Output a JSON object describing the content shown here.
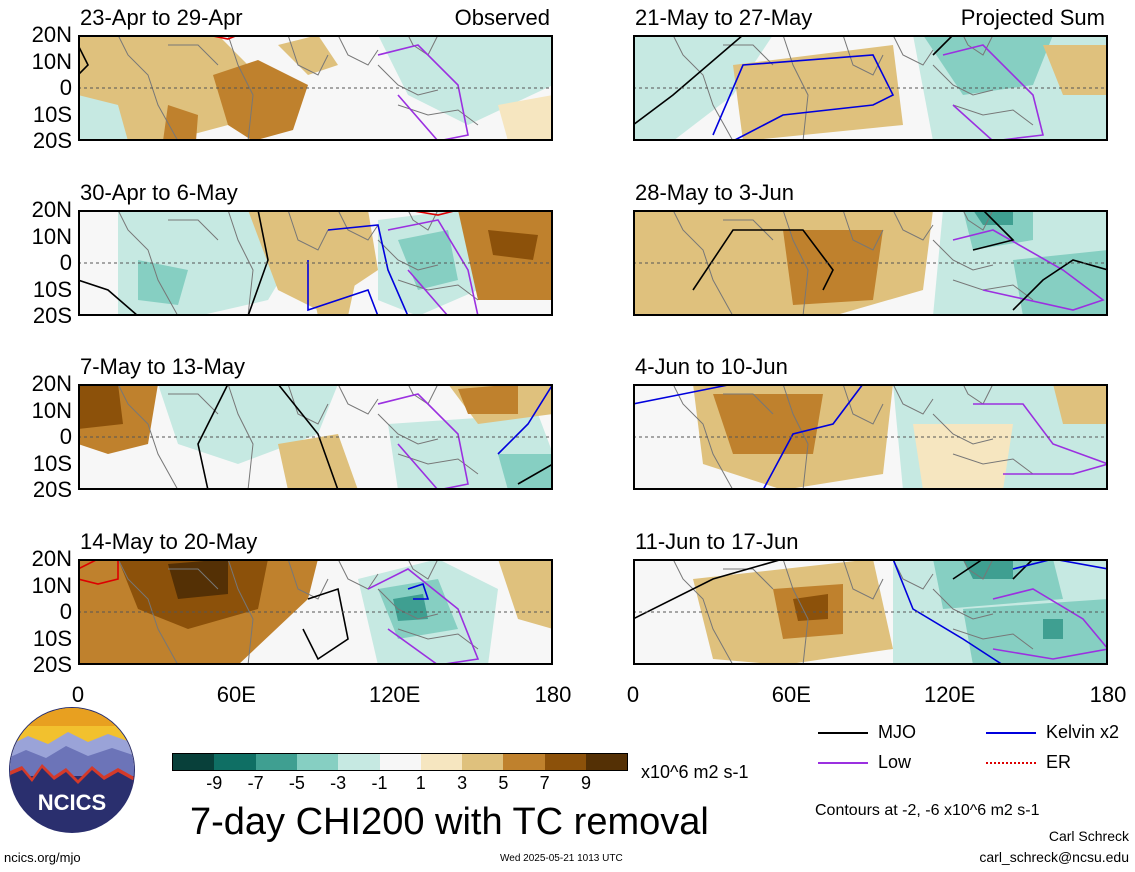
{
  "panels": [
    {
      "col": 0,
      "row": 0,
      "title": "23-Apr to 29-Apr",
      "corner_label": "Observed"
    },
    {
      "col": 0,
      "row": 1,
      "title": "30-Apr to 6-May",
      "corner_label": ""
    },
    {
      "col": 0,
      "row": 2,
      "title": "7-May to 13-May",
      "corner_label": ""
    },
    {
      "col": 0,
      "row": 3,
      "title": "14-May to 20-May",
      "corner_label": ""
    },
    {
      "col": 1,
      "row": 0,
      "title": "21-May to 27-May",
      "corner_label": "Projected Sum"
    },
    {
      "col": 1,
      "row": 1,
      "title": "28-May to 3-Jun",
      "corner_label": ""
    },
    {
      "col": 1,
      "row": 2,
      "title": "4-Jun to 10-Jun",
      "corner_label": ""
    },
    {
      "col": 1,
      "row": 3,
      "title": "11-Jun to 17-Jun",
      "corner_label": ""
    }
  ],
  "lat_labels": [
    "20N",
    "10N",
    "0",
    "10S",
    "20S"
  ],
  "lon_labels": [
    "0",
    "60E",
    "120E",
    "180"
  ],
  "colorbar": {
    "colors": [
      "#08403a",
      "#0f6f64",
      "#3f9f91",
      "#86cfc2",
      "#c6e9e2",
      "#f7f7f7",
      "#f6e6c0",
      "#dfc17d",
      "#bf812d",
      "#8c510a",
      "#543005"
    ],
    "ticks": [
      "-9",
      "-7",
      "-5",
      "-3",
      "-1",
      "1",
      "3",
      "5",
      "7",
      "9"
    ],
    "units": "x10^6 m2 s-1"
  },
  "title": "7-day CHI200 with TC removal",
  "legend": [
    {
      "label": "MJO",
      "color": "#000000"
    },
    {
      "label": "Kelvin x2",
      "color": "#0000dd"
    },
    {
      "label": "Low",
      "color": "#9b30e0"
    },
    {
      "label": "ER",
      "color": "#dd0000"
    }
  ],
  "contour_note": "Contours at -2, -6 x10^6 m2 s-1",
  "author": "Carl Schreck",
  "email": "carl_schreck@ncsu.edu",
  "site": "ncics.org/mjo",
  "timestamp": "Wed 2025-05-21 1013 UTC",
  "logo_text": "NCICS"
}
